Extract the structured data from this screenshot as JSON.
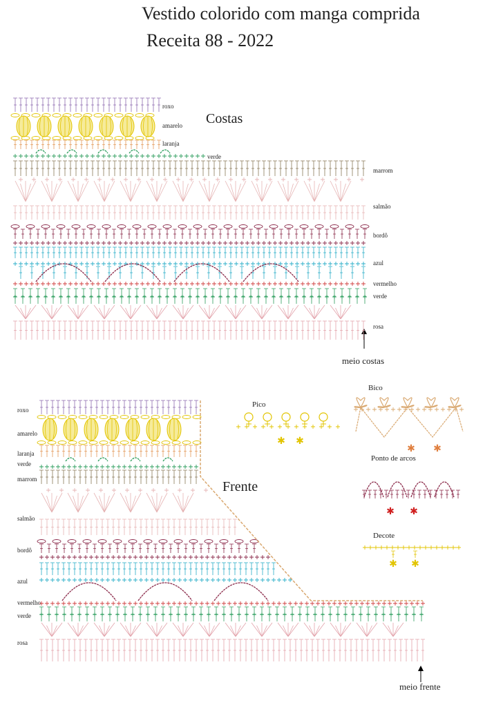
{
  "header": {
    "title": "Vestido colorido com manga comprida",
    "subtitle": "Receita  88 - 2022"
  },
  "back": {
    "title": "Costas",
    "rows": [
      "roxo",
      "amarelo",
      "laranja",
      "verde",
      "marrom",
      "salmão",
      "bordô",
      "azul",
      "vermelho",
      "verde",
      "rosa"
    ],
    "center_label": "meio costas"
  },
  "front": {
    "title": "Frente",
    "rows": [
      "roxo",
      "amarelo",
      "laranja",
      "verde",
      "marrom",
      "salmão",
      "bordô",
      "azul",
      "vermelho",
      "verde",
      "rosa"
    ],
    "center_label": "meio frente"
  },
  "stitches": [
    {
      "label": "Pico"
    },
    {
      "label": "Bico"
    },
    {
      "label": "Ponto de arcos"
    },
    {
      "label": "Decote"
    }
  ]
}
